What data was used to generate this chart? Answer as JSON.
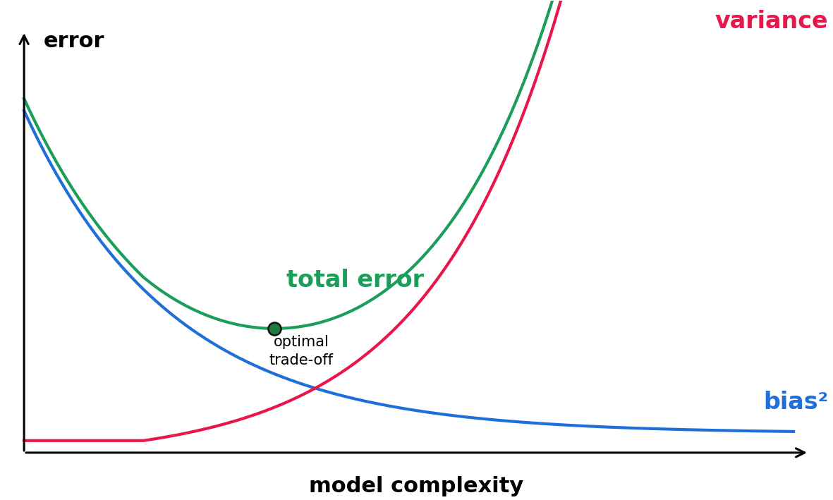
{
  "background_color": "#ffffff",
  "bias_color": "#1e6fd9",
  "variance_color": "#e8174b",
  "total_error_color": "#1a9e5a",
  "optimal_point_color": "#1a7a40",
  "ylabel": "error",
  "xlabel": "model complexity",
  "label_variance": "variance",
  "label_bias": "bias²",
  "label_total": "total error",
  "label_optimal": "optimal\ntrade-off",
  "line_width": 3.0,
  "font_size_axis_labels": 22,
  "font_size_curve_labels": 24,
  "font_size_optimal_label": 15
}
